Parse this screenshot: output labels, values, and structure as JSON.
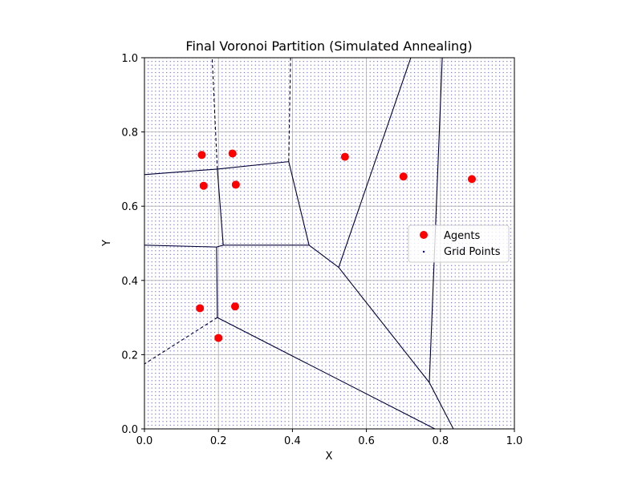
{
  "chart_data": {
    "type": "scatter",
    "title": "Final Voronoi Partition (Simulated Annealing)",
    "xlabel": "X",
    "ylabel": "Y",
    "xlim": [
      0,
      1
    ],
    "ylim": [
      0,
      1
    ],
    "xticks": [
      "0.0",
      "0.2",
      "0.4",
      "0.6",
      "0.8",
      "1.0"
    ],
    "yticks": [
      "0.0",
      "0.2",
      "0.4",
      "0.6",
      "0.8",
      "1.0"
    ],
    "grid": true,
    "legend_position": "center-right",
    "legend": [
      {
        "label": "Agents",
        "marker": "circle",
        "color": "#ff0000"
      },
      {
        "label": "Grid Points",
        "marker": "dot",
        "color": "#0000cc"
      }
    ],
    "series": [
      {
        "name": "Agents",
        "color": "#ff0000",
        "points": [
          {
            "x": 0.155,
            "y": 0.738
          },
          {
            "x": 0.238,
            "y": 0.742
          },
          {
            "x": 0.16,
            "y": 0.655
          },
          {
            "x": 0.247,
            "y": 0.658
          },
          {
            "x": 0.542,
            "y": 0.733
          },
          {
            "x": 0.7,
            "y": 0.68
          },
          {
            "x": 0.885,
            "y": 0.673
          },
          {
            "x": 0.15,
            "y": 0.325
          },
          {
            "x": 0.245,
            "y": 0.33
          },
          {
            "x": 0.2,
            "y": 0.245
          }
        ]
      },
      {
        "name": "Grid Points",
        "color": "#0000cc",
        "grid_resolution": 0.01,
        "range": [
          0,
          1
        ]
      }
    ],
    "voronoi_edges": [
      {
        "from": [
          0.0,
          0.685
        ],
        "to": [
          0.197,
          0.7
        ],
        "style": "solid"
      },
      {
        "from": [
          0.197,
          0.7
        ],
        "to": [
          0.39,
          0.72
        ],
        "style": "solid"
      },
      {
        "from": [
          0.39,
          0.72
        ],
        "to": [
          0.445,
          0.495
        ],
        "style": "solid"
      },
      {
        "from": [
          0.445,
          0.495
        ],
        "to": [
          0.525,
          0.435
        ],
        "style": "solid"
      },
      {
        "from": [
          0.525,
          0.435
        ],
        "to": [
          0.72,
          1.0
        ],
        "style": "solid"
      },
      {
        "from": [
          0.525,
          0.435
        ],
        "to": [
          0.77,
          0.125
        ],
        "style": "solid"
      },
      {
        "from": [
          0.77,
          0.125
        ],
        "to": [
          0.805,
          1.0
        ],
        "style": "solid"
      },
      {
        "from": [
          0.77,
          0.125
        ],
        "to": [
          0.835,
          0.0
        ],
        "style": "solid"
      },
      {
        "from": [
          0.197,
          0.7
        ],
        "to": [
          0.213,
          0.495
        ],
        "style": "solid"
      },
      {
        "from": [
          0.213,
          0.495
        ],
        "to": [
          0.445,
          0.495
        ],
        "style": "solid"
      },
      {
        "from": [
          0.213,
          0.495
        ],
        "to": [
          0.195,
          0.49
        ],
        "style": "solid"
      },
      {
        "from": [
          0.0,
          0.495
        ],
        "to": [
          0.195,
          0.49
        ],
        "style": "solid"
      },
      {
        "from": [
          0.195,
          0.49
        ],
        "to": [
          0.197,
          0.3
        ],
        "style": "solid"
      },
      {
        "from": [
          0.197,
          0.3
        ],
        "to": [
          0.785,
          0.0
        ],
        "style": "solid"
      },
      {
        "from": [
          0.197,
          0.7
        ],
        "to": [
          0.183,
          1.0
        ],
        "style": "dashed"
      },
      {
        "from": [
          0.39,
          0.72
        ],
        "to": [
          0.395,
          1.0
        ],
        "style": "dashed"
      },
      {
        "from": [
          0.197,
          0.3
        ],
        "to": [
          0.0,
          0.175
        ],
        "style": "dashed"
      }
    ]
  }
}
